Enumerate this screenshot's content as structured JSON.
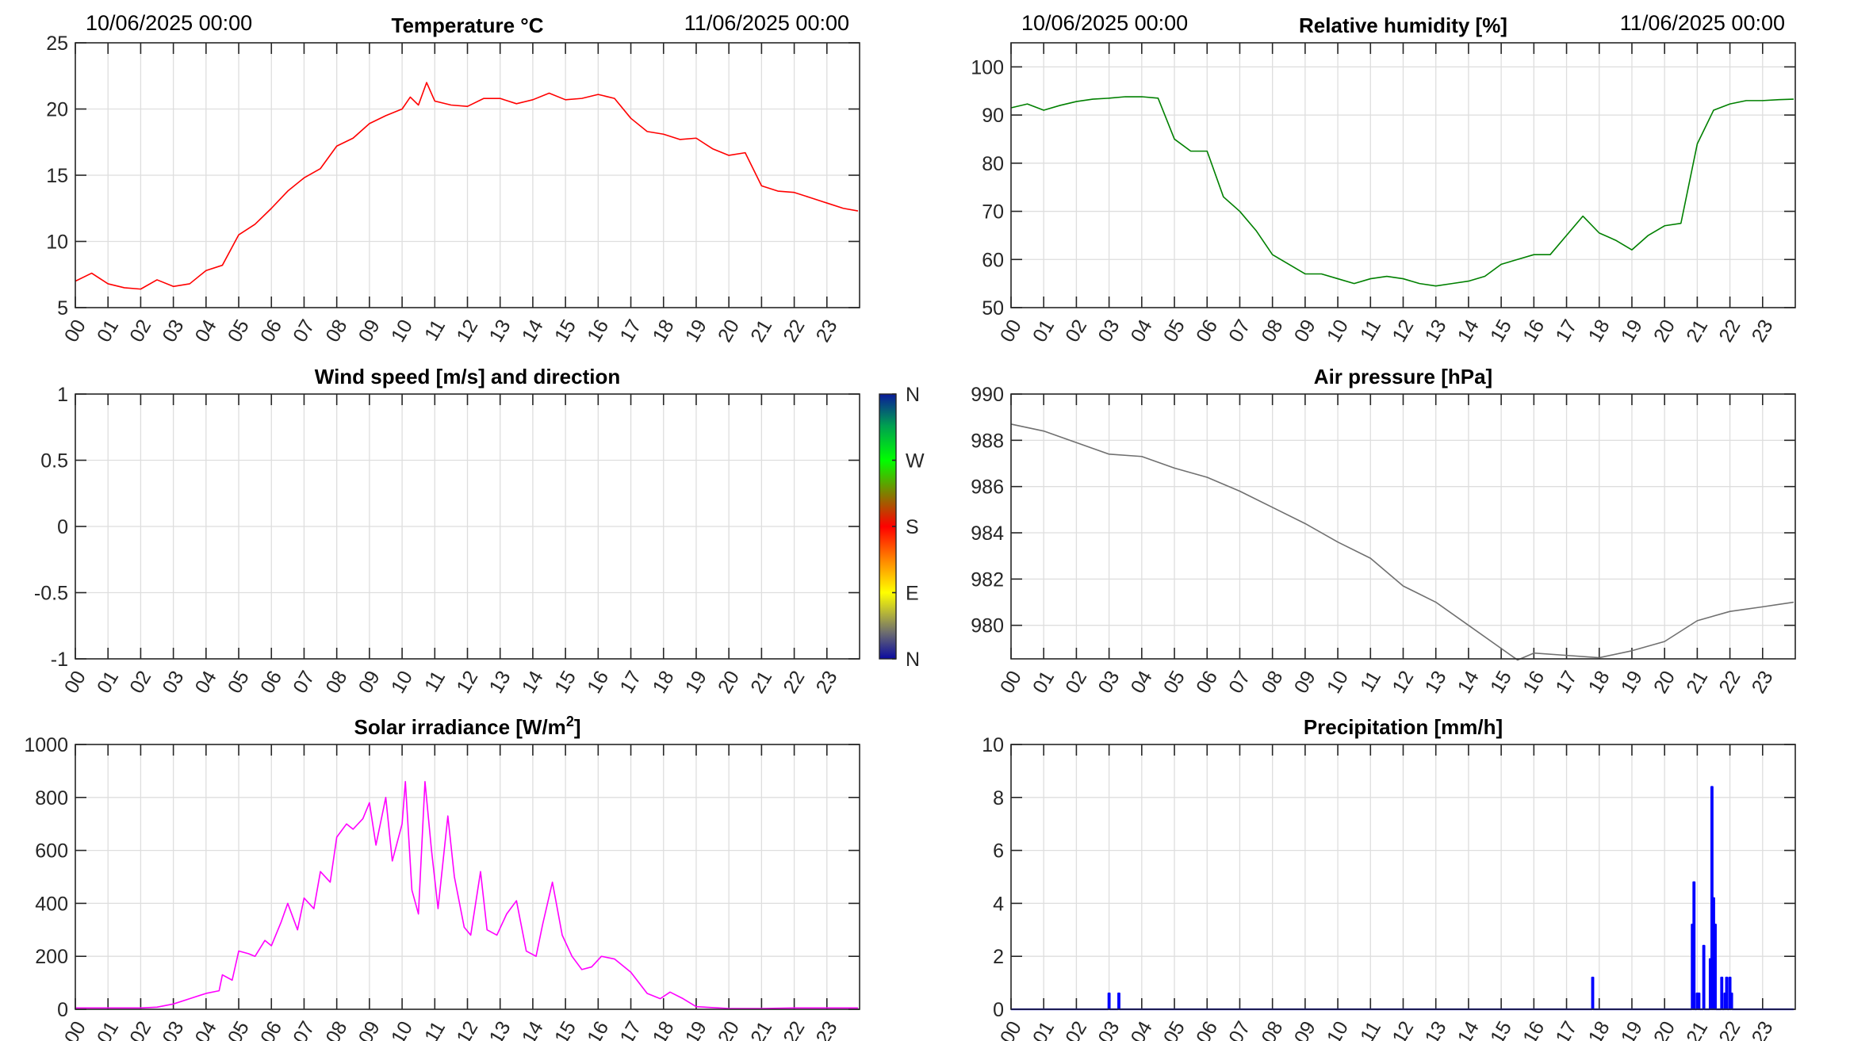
{
  "chart_data": [
    {
      "id": "temperature",
      "type": "line",
      "title": "Temperature °C",
      "start_label": "10/06/2025 00:00",
      "end_label": "11/06/2025 00:00",
      "xlabel": "",
      "ylabel": "",
      "xlim": [
        0,
        24
      ],
      "ylim": [
        5,
        25
      ],
      "yticks": [
        5,
        10,
        15,
        20,
        25
      ],
      "ytick_labels": [
        "5",
        "10",
        "15",
        "20",
        "25"
      ],
      "color": "#ff0000",
      "grid": true,
      "x": [
        0,
        0.5,
        1,
        1.5,
        2,
        2.5,
        3,
        3.5,
        4,
        4.5,
        5,
        5.5,
        6,
        6.5,
        7,
        7.5,
        8,
        8.5,
        9,
        9.5,
        10,
        10.25,
        10.5,
        10.75,
        11,
        11.5,
        12,
        12.5,
        13,
        13.5,
        14,
        14.5,
        15,
        15.5,
        16,
        16.5,
        17,
        17.5,
        18,
        18.5,
        19,
        19.5,
        20,
        20.5,
        21,
        21.5,
        22,
        22.5,
        23,
        23.5,
        23.95
      ],
      "y": [
        7.0,
        7.6,
        6.8,
        6.5,
        6.4,
        7.1,
        6.6,
        6.8,
        7.8,
        8.2,
        10.5,
        11.3,
        12.5,
        13.8,
        14.8,
        15.5,
        17.2,
        17.8,
        18.9,
        19.5,
        20.0,
        20.9,
        20.3,
        22.0,
        20.6,
        20.3,
        20.2,
        20.8,
        20.8,
        20.4,
        20.7,
        21.2,
        20.7,
        20.8,
        21.1,
        20.8,
        19.3,
        18.3,
        18.1,
        17.7,
        17.8,
        17.0,
        16.5,
        16.7,
        14.2,
        13.8,
        13.7,
        13.3,
        12.9,
        12.5,
        12.3
      ]
    },
    {
      "id": "humidity",
      "type": "line",
      "title": "Relative humidity [%]",
      "start_label": "10/06/2025 00:00",
      "end_label": "11/06/2025 00:00",
      "xlabel": "",
      "ylabel": "",
      "xlim": [
        0,
        24
      ],
      "ylim": [
        50,
        105
      ],
      "yticks": [
        50,
        60,
        70,
        80,
        90,
        100
      ],
      "ytick_labels": [
        "50",
        "60",
        "70",
        "80",
        "90",
        "100"
      ],
      "color": "#008000",
      "grid": true,
      "x": [
        0,
        0.5,
        1,
        1.5,
        2,
        2.5,
        3,
        3.5,
        4,
        4.5,
        5,
        5.5,
        6,
        6.5,
        7,
        7.5,
        8,
        8.5,
        9,
        9.5,
        10,
        10.5,
        11,
        11.5,
        12,
        12.5,
        13,
        13.5,
        14,
        14.5,
        15,
        15.5,
        16,
        16.5,
        17,
        17.5,
        18,
        18.5,
        19,
        19.5,
        20,
        20.5,
        21,
        21.5,
        22,
        22.5,
        23,
        23.5,
        23.95
      ],
      "y": [
        91.5,
        92.3,
        91.0,
        92.0,
        92.8,
        93.3,
        93.5,
        93.8,
        93.8,
        93.5,
        85.0,
        82.5,
        82.5,
        73.0,
        70.0,
        66.0,
        61.0,
        59.0,
        57.0,
        57.0,
        56.0,
        55.0,
        56.0,
        56.5,
        56.0,
        55.0,
        54.5,
        55.0,
        55.5,
        56.5,
        59.0,
        60.0,
        61.0,
        61.0,
        65.0,
        69.0,
        65.5,
        64.0,
        62.0,
        65.0,
        67.0,
        67.5,
        84.0,
        91.0,
        92.3,
        93.0,
        93.0,
        93.2,
        93.3
      ]
    },
    {
      "id": "wind",
      "type": "scatter",
      "title": "Wind speed [m/s] and direction",
      "xlabel": "",
      "ylabel": "",
      "xlim": [
        0,
        24
      ],
      "ylim": [
        -1,
        1
      ],
      "yticks": [
        -1,
        -0.5,
        0,
        0.5,
        1
      ],
      "ytick_labels": [
        "-1",
        "-0.5",
        "0",
        "0.5",
        "1"
      ],
      "grid": false,
      "x": [],
      "y": [],
      "colorbar": {
        "labels": [
          "N",
          "E",
          "S",
          "W",
          "N"
        ],
        "colors": [
          "#0a0aa0",
          "#6e6e6e",
          "#ffff00",
          "#ff7f00",
          "#ff0000",
          "#00ff00",
          "#00a050",
          "#0a1a9a"
        ]
      }
    },
    {
      "id": "pressure",
      "type": "line",
      "title": "Air pressure [hPa]",
      "xlabel": "",
      "ylabel": "",
      "xlim": [
        0,
        24
      ],
      "ylim": [
        978.55,
        990
      ],
      "yticks": [
        980,
        982,
        984,
        986,
        988,
        990
      ],
      "ytick_labels": [
        "980",
        "982",
        "984",
        "986",
        "988",
        "990"
      ],
      "color": "#707070",
      "grid": true,
      "x": [
        0,
        1,
        2,
        3,
        4,
        5,
        6,
        7,
        8,
        9,
        10,
        11,
        12,
        13,
        14,
        15,
        15.5,
        16,
        17,
        18,
        19,
        20,
        21,
        22,
        23,
        23.95
      ],
      "y": [
        988.7,
        988.4,
        987.9,
        987.4,
        987.3,
        986.8,
        986.4,
        985.8,
        985.1,
        984.4,
        983.6,
        982.9,
        981.7,
        981.0,
        980.0,
        979.0,
        978.5,
        978.8,
        978.7,
        978.6,
        978.9,
        979.3,
        980.2,
        980.6,
        980.8,
        981.0
      ]
    },
    {
      "id": "solar",
      "type": "line",
      "title": "Solar irradiance [W/m",
      "title_sup": "2",
      "title_end": "]",
      "xlabel": "",
      "ylabel": "",
      "xlim": [
        0,
        24
      ],
      "ylim": [
        0,
        1000
      ],
      "yticks": [
        0,
        200,
        400,
        600,
        800,
        1000
      ],
      "ytick_labels": [
        "0",
        "200",
        "400",
        "600",
        "800",
        "1000"
      ],
      "color": "#ff00ff",
      "grid": true,
      "x": [
        0,
        1,
        2,
        2.5,
        3,
        3.5,
        4,
        4.4,
        4.5,
        4.8,
        5,
        5.3,
        5.5,
        5.8,
        6,
        6.3,
        6.5,
        6.8,
        7,
        7.3,
        7.5,
        7.8,
        8,
        8.3,
        8.5,
        8.8,
        9,
        9.2,
        9.5,
        9.7,
        10,
        10.1,
        10.3,
        10.5,
        10.7,
        10.9,
        11.1,
        11.4,
        11.6,
        11.9,
        12.1,
        12.4,
        12.6,
        12.9,
        13.2,
        13.5,
        13.8,
        14.1,
        14.3,
        14.6,
        14.9,
        15.2,
        15.5,
        15.8,
        16.1,
        16.5,
        17,
        17.5,
        17.9,
        18.2,
        18.6,
        19,
        20,
        21,
        22,
        23,
        23.95
      ],
      "y": [
        5,
        5,
        5,
        8,
        20,
        40,
        60,
        70,
        130,
        110,
        220,
        210,
        200,
        260,
        240,
        330,
        400,
        300,
        420,
        380,
        520,
        480,
        650,
        700,
        680,
        720,
        780,
        620,
        800,
        560,
        700,
        860,
        450,
        360,
        860,
        600,
        380,
        730,
        500,
        310,
        280,
        520,
        300,
        280,
        360,
        410,
        220,
        200,
        320,
        480,
        280,
        200,
        150,
        160,
        200,
        190,
        140,
        60,
        40,
        65,
        40,
        10,
        3,
        3,
        5,
        5,
        5
      ]
    },
    {
      "id": "precipitation",
      "type": "line",
      "title": "Precipitation [mm/h]",
      "xlabel": "",
      "ylabel": "",
      "xlim": [
        0,
        24
      ],
      "ylim": [
        0,
        10
      ],
      "yticks": [
        0,
        2,
        4,
        6,
        8,
        10
      ],
      "ytick_labels": [
        "0",
        "2",
        "4",
        "6",
        "8",
        "10"
      ],
      "color": "#0000ff",
      "grid": true,
      "x": [
        3.0,
        3.3,
        17.8,
        20.85,
        20.9,
        21.0,
        21.05,
        21.2,
        21.4,
        21.45,
        21.5,
        21.55,
        21.75,
        21.85,
        21.9,
        22.0,
        22.05
      ],
      "y": [
        0.6,
        0.6,
        1.2,
        3.2,
        4.8,
        0.6,
        0.6,
        2.4,
        1.9,
        8.4,
        4.2,
        3.2,
        1.2,
        0.6,
        1.2,
        1.2,
        0.6
      ]
    }
  ],
  "xtick_labels": [
    "00",
    "01",
    "02",
    "03",
    "04",
    "05",
    "06",
    "07",
    "08",
    "09",
    "10",
    "11",
    "12",
    "13",
    "14",
    "15",
    "16",
    "17",
    "18",
    "19",
    "20",
    "21",
    "22",
    "23"
  ]
}
